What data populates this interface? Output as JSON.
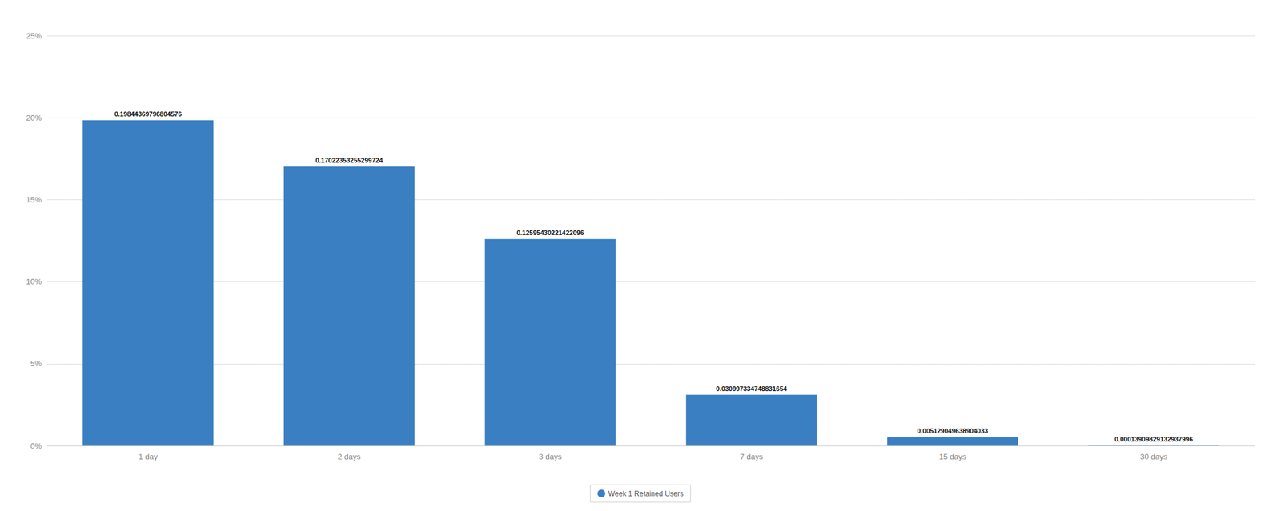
{
  "chart_data": {
    "type": "bar",
    "categories": [
      "1 day",
      "2 days",
      "3 days",
      "7 days",
      "15 days",
      "30 days"
    ],
    "series": [
      {
        "name": "Week 1 Retained Users",
        "color": "#3a7fc1",
        "values": [
          0.19844369796804576,
          0.17022353255299724,
          0.12595430221422096,
          0.030997334748831654,
          0.005129049638904033,
          0.00013909829132937996
        ]
      }
    ],
    "ylim": [
      0,
      0.25
    ],
    "yticks": [
      {
        "value": 0.0,
        "label": "0%"
      },
      {
        "value": 0.05,
        "label": "5%"
      },
      {
        "value": 0.1,
        "label": "10%"
      },
      {
        "value": 0.15,
        "label": "15%"
      },
      {
        "value": 0.2,
        "label": "20%"
      },
      {
        "value": 0.25,
        "label": "25%"
      }
    ],
    "grid": true,
    "legend": "bottom",
    "data_labels": true
  }
}
